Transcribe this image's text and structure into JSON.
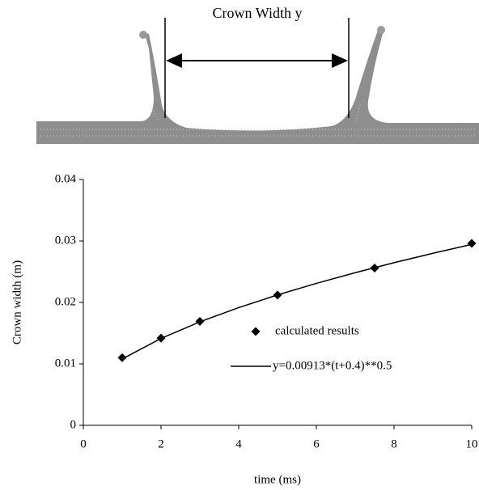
{
  "illustration": {
    "label": "Crown Width y"
  },
  "chart_data": {
    "type": "line",
    "x_label": "time (ms)",
    "y_label": "Crown width  (m)",
    "xlim": [
      0,
      10
    ],
    "xticks": [
      0,
      2,
      4,
      6,
      8,
      10
    ],
    "ylim": [
      0,
      0.04
    ],
    "yticks": [
      0,
      0.01,
      0.02,
      0.03,
      0.04
    ],
    "grid": false,
    "series": [
      {
        "name": "calculated results",
        "mode": "markers",
        "color": "#000000",
        "x": [
          1,
          2,
          3,
          5,
          7.5,
          10
        ],
        "values": [
          0.011,
          0.0142,
          0.0169,
          0.0212,
          0.0256,
          0.0296
        ]
      },
      {
        "name": "y=0.00913*(t+0.4)**0.5",
        "mode": "line",
        "color": "#000000",
        "x": [
          1,
          2,
          3,
          4,
          5,
          6,
          7,
          8,
          9,
          10
        ],
        "values": [
          0.0108,
          0.01414,
          0.01684,
          0.01915,
          0.02122,
          0.0231,
          0.02484,
          0.02646,
          0.02799,
          0.02944
        ]
      }
    ]
  }
}
